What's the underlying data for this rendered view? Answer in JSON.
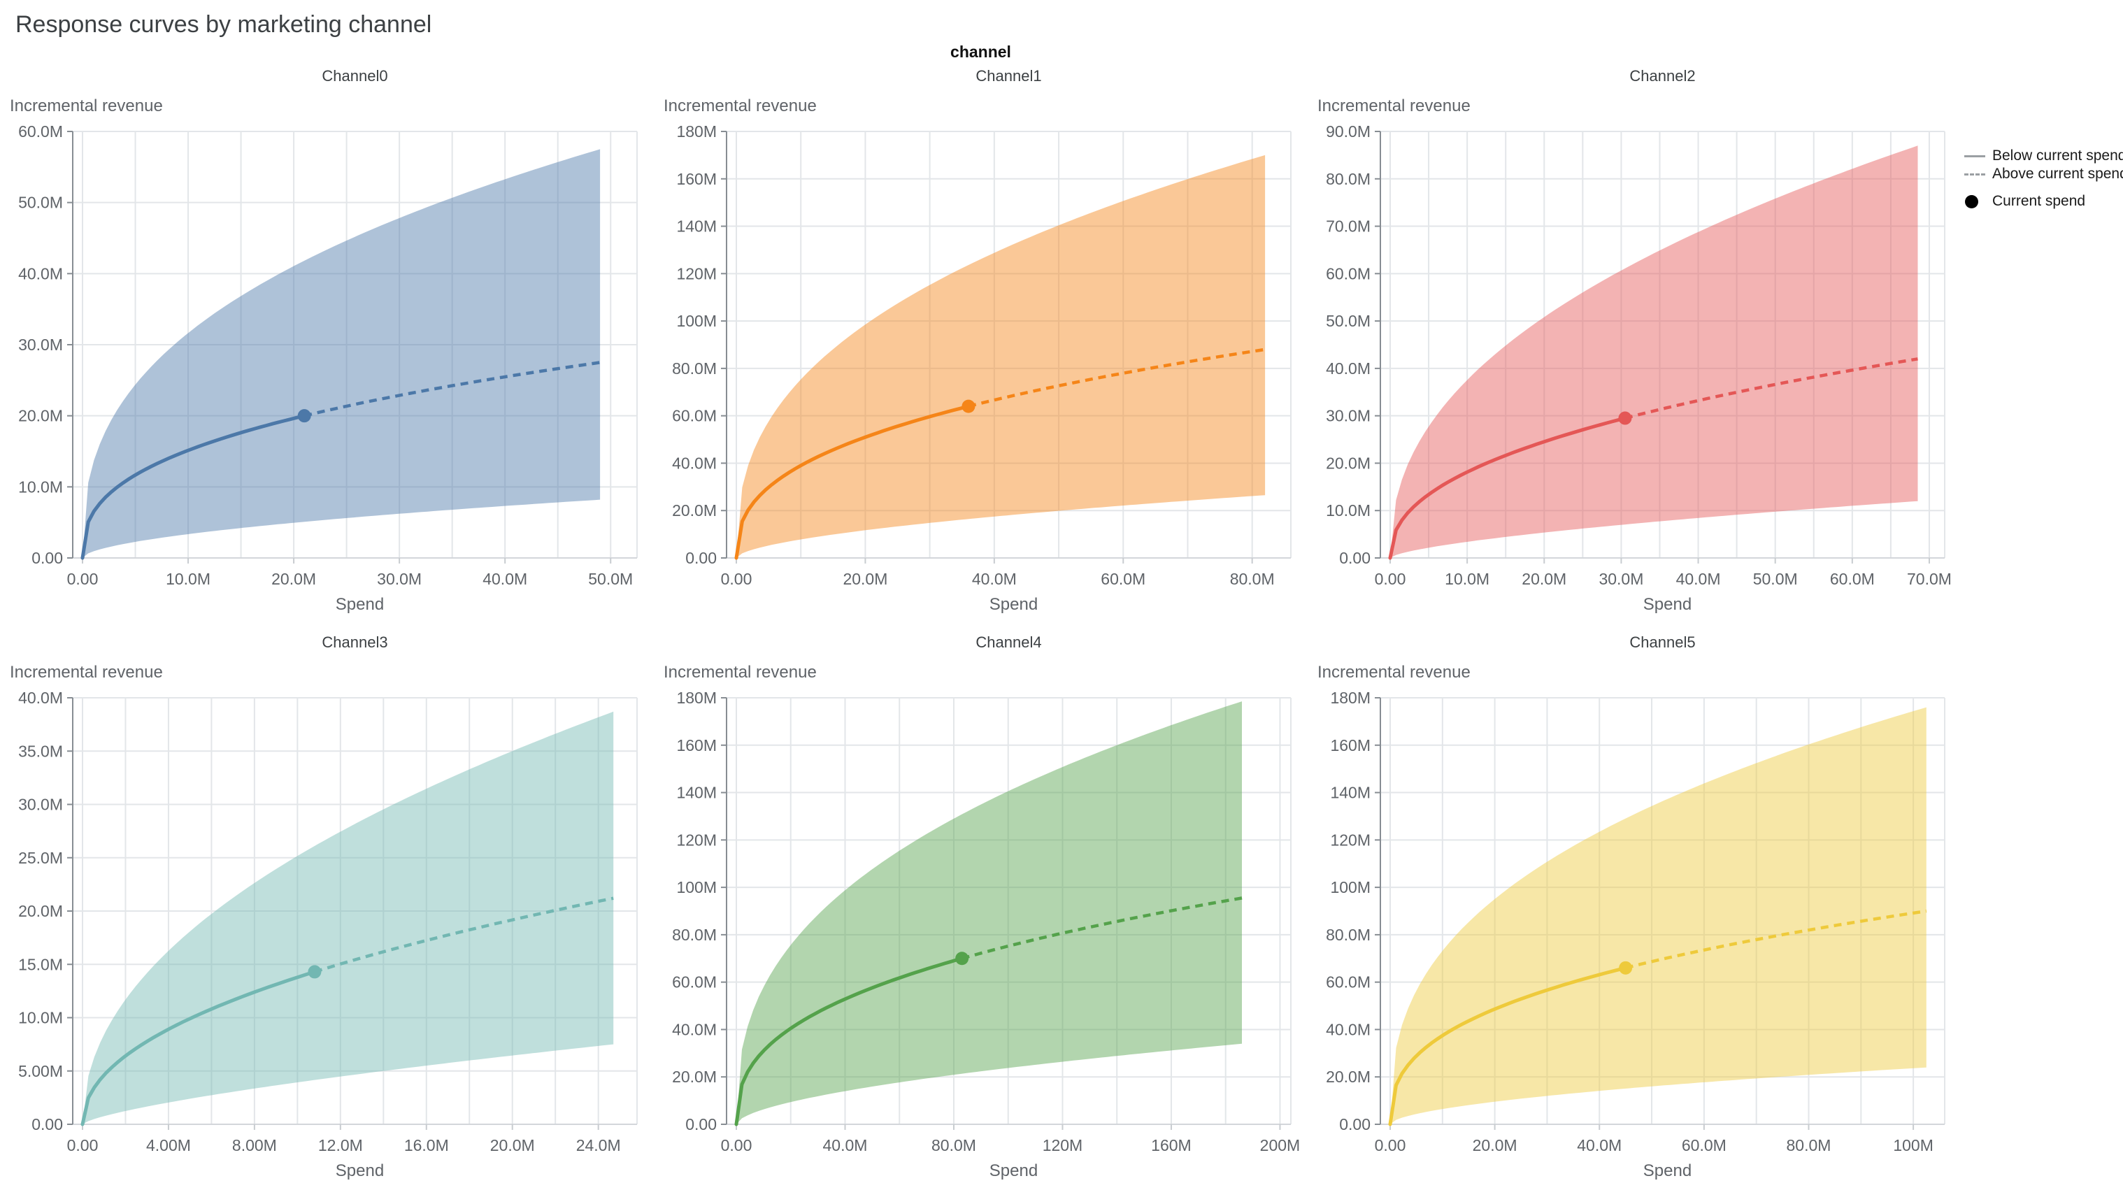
{
  "page_title": "Response curves by marketing channel",
  "facet_title": "channel",
  "legend": {
    "below_label": "Below current spend",
    "above_label": "Above current spend",
    "current_label": "Current spend",
    "symbol_color": "#9b9fa3",
    "current_dot_color": "#000000"
  },
  "chart_data": {
    "type": "line",
    "title": "Response curves by marketing channel",
    "facet_field": "channel",
    "x_label": "Spend",
    "y_label": "Incremental revenue",
    "units": "millions",
    "grid": true,
    "band_opacity": 0.45,
    "legend_position": "top-right",
    "legend_entries": [
      "Below current spend",
      "Above current spend",
      "Current spend"
    ],
    "series": [
      {
        "name": "Channel0",
        "color": "#4c78a8",
        "x_axis_max": 52.5,
        "x_label_step": 10,
        "y_axis_max": 60,
        "y_label_step": 10,
        "curve_end": {
          "x": 49,
          "y": 27.5
        },
        "current_spend": {
          "x": 21,
          "y": 20
        },
        "band_end": {
          "upper": 57.5,
          "lower": 8.2
        }
      },
      {
        "name": "Channel1",
        "color": "#f58518",
        "x_axis_max": 86,
        "x_label_step": 20,
        "y_axis_max": 180,
        "y_label_step": 20,
        "curve_end": {
          "x": 82,
          "y": 88
        },
        "current_spend": {
          "x": 36,
          "y": 64
        },
        "band_end": {
          "upper": 170,
          "lower": 26.5
        }
      },
      {
        "name": "Channel2",
        "color": "#e45756",
        "x_axis_max": 72,
        "x_label_step": 10,
        "y_axis_max": 90,
        "y_label_step": 10,
        "curve_end": {
          "x": 68.5,
          "y": 42
        },
        "current_spend": {
          "x": 30.5,
          "y": 29.5
        },
        "band_end": {
          "upper": 87,
          "lower": 12
        }
      },
      {
        "name": "Channel3",
        "color": "#72b7b2",
        "x_axis_max": 25.8,
        "x_label_step": 4,
        "y_axis_max": 40,
        "y_label_step": 5,
        "curve_end": {
          "x": 24.7,
          "y": 21.2
        },
        "current_spend": {
          "x": 10.8,
          "y": 14.3
        },
        "band_end": {
          "upper": 38.7,
          "lower": 7.5
        }
      },
      {
        "name": "Channel4",
        "color": "#54a24b",
        "x_axis_max": 204,
        "x_label_step": 40,
        "y_axis_max": 180,
        "y_label_step": 20,
        "curve_end": {
          "x": 186,
          "y": 95.5
        },
        "current_spend": {
          "x": 83,
          "y": 70
        },
        "band_end": {
          "upper": 178.5,
          "lower": 34
        }
      },
      {
        "name": "Channel5",
        "color": "#eeca3b",
        "x_axis_max": 106,
        "x_label_step": 20,
        "y_axis_max": 180,
        "y_label_step": 20,
        "curve_end": {
          "x": 102.5,
          "y": 90
        },
        "current_spend": {
          "x": 45,
          "y": 66
        },
        "band_end": {
          "upper": 176,
          "lower": 24
        }
      }
    ]
  }
}
